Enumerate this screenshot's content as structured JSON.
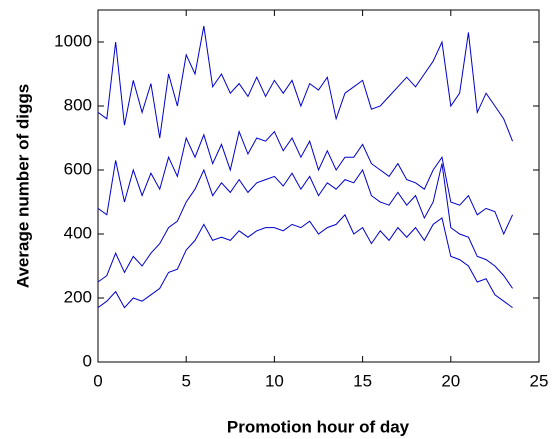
{
  "chart_data": {
    "type": "line",
    "xlabel": "Promotion hour of day",
    "ylabel": "Average number of diggs",
    "x": [
      0,
      0.5,
      1,
      1.5,
      2,
      2.5,
      3,
      3.5,
      4,
      4.5,
      5,
      5.5,
      6,
      6.5,
      7,
      7.5,
      8,
      8.5,
      9,
      9.5,
      10,
      10.5,
      11,
      11.5,
      12,
      12.5,
      13,
      13.5,
      14,
      14.5,
      15,
      15.5,
      16,
      16.5,
      17,
      17.5,
      18,
      18.5,
      19,
      19.5,
      20,
      20.5,
      21,
      21.5,
      22,
      22.5,
      23,
      23.5
    ],
    "series": [
      {
        "color": "#0000cc",
        "values": [
          780,
          760,
          1000,
          740,
          880,
          780,
          870,
          700,
          900,
          800,
          960,
          900,
          1050,
          860,
          900,
          840,
          870,
          830,
          890,
          830,
          880,
          840,
          880,
          800,
          870,
          850,
          890,
          760,
          840,
          860,
          880,
          790,
          800,
          830,
          860,
          890,
          860,
          900,
          940,
          1000,
          800,
          840,
          1030,
          780,
          840,
          800,
          760,
          690
        ]
      },
      {
        "color": "#0000cc",
        "values": [
          480,
          460,
          630,
          500,
          600,
          520,
          590,
          540,
          640,
          580,
          700,
          640,
          710,
          620,
          680,
          600,
          720,
          650,
          700,
          690,
          720,
          660,
          700,
          640,
          690,
          600,
          660,
          600,
          640,
          640,
          680,
          620,
          600,
          580,
          620,
          570,
          560,
          540,
          600,
          640,
          500,
          490,
          520,
          460,
          480,
          470,
          400,
          460
        ]
      },
      {
        "color": "#0000cc",
        "values": [
          250,
          270,
          340,
          280,
          330,
          300,
          340,
          370,
          420,
          440,
          500,
          540,
          600,
          520,
          560,
          530,
          570,
          530,
          560,
          570,
          580,
          550,
          590,
          540,
          580,
          520,
          560,
          540,
          570,
          560,
          600,
          520,
          500,
          490,
          530,
          490,
          520,
          450,
          500,
          620,
          420,
          400,
          390,
          330,
          320,
          300,
          270,
          230
        ]
      },
      {
        "color": "#0000cc",
        "values": [
          170,
          190,
          220,
          170,
          200,
          190,
          210,
          230,
          280,
          290,
          350,
          380,
          430,
          380,
          390,
          380,
          410,
          390,
          410,
          420,
          420,
          410,
          430,
          420,
          440,
          400,
          420,
          430,
          460,
          400,
          420,
          370,
          410,
          380,
          420,
          390,
          420,
          380,
          430,
          450,
          330,
          320,
          300,
          250,
          260,
          210,
          190,
          170
        ]
      }
    ],
    "xlim": [
      0,
      25
    ],
    "xticks": [
      0,
      5,
      10,
      15,
      20,
      25
    ],
    "ylim": [
      0,
      1100
    ],
    "yticks": [
      0,
      200,
      400,
      600,
      800,
      1000
    ],
    "grid": false
  }
}
